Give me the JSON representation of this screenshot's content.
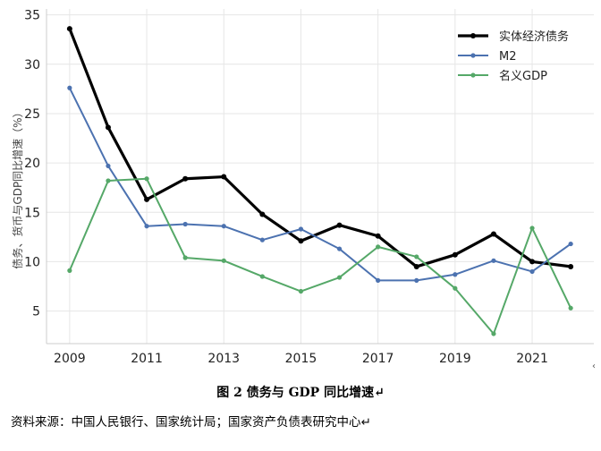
{
  "figure": {
    "caption": "图 2 债务与 GDP 同比增速↵",
    "source": "资料来源：中国人民银行、国家统计局；国家资产负债表研究中心↵",
    "edge_mark": "‹"
  },
  "chart_data": {
    "type": "line",
    "ylabel": "债务、货币与GDP同比增速（%）",
    "xlabel": "",
    "x": [
      2009,
      2010,
      2011,
      2012,
      2013,
      2014,
      2015,
      2016,
      2017,
      2018,
      2019,
      2020,
      2021,
      2022
    ],
    "x_ticks": [
      2009,
      2011,
      2013,
      2015,
      2017,
      2019,
      2021
    ],
    "xlim": [
      2008.4,
      2022.6
    ],
    "y_ticks": [
      5,
      10,
      15,
      20,
      25,
      30,
      35
    ],
    "ylim": [
      1.7,
      35.6
    ],
    "grid": true,
    "legend_position": "top-right",
    "series": [
      {
        "name": "实体经济债务",
        "color": "#000000",
        "values": [
          33.6,
          23.6,
          16.3,
          18.4,
          18.6,
          14.8,
          12.1,
          13.7,
          12.6,
          9.5,
          10.7,
          12.8,
          10.0,
          9.5
        ]
      },
      {
        "name": "M2",
        "color": "#4c72b0",
        "values": [
          27.6,
          19.7,
          13.6,
          13.8,
          13.6,
          12.2,
          13.3,
          11.3,
          8.1,
          8.1,
          8.7,
          10.1,
          9.0,
          11.8
        ]
      },
      {
        "name": "名义GDP",
        "color": "#55a868",
        "values": [
          9.1,
          18.2,
          18.4,
          10.4,
          10.1,
          8.5,
          7.0,
          8.4,
          11.5,
          10.5,
          7.3,
          2.7,
          13.4,
          5.3
        ]
      }
    ]
  }
}
